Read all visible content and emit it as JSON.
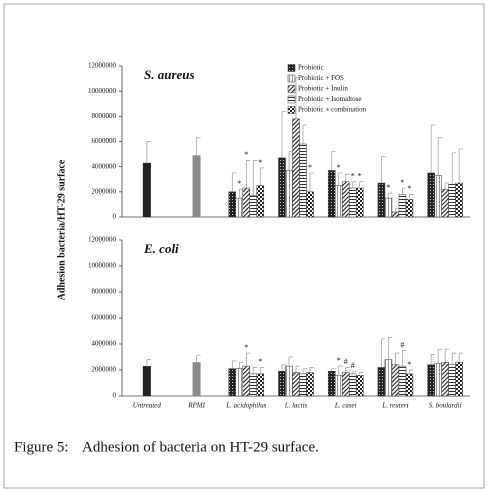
{
  "chart_data": [
    {
      "type": "bar",
      "title": "S. aureus",
      "ylabel": "Adhesion bacteria/HT-29 surface",
      "ylim": [
        0,
        12000000
      ],
      "yticks": [
        0,
        2000000,
        4000000,
        6000000,
        8000000,
        10000000,
        12000000
      ],
      "legend": "top-right",
      "control": {
        "values": [
          4300000,
          4900000,
          null,
          null,
          null,
          null,
          null
        ],
        "errors": [
          1700000,
          1400000,
          null,
          null,
          null,
          null,
          null
        ],
        "colors": [
          "#222",
          "#8a8a8a"
        ]
      },
      "series": [
        {
          "name": "Probiotic",
          "pattern": "dots",
          "values": [
            null,
            null,
            2000000,
            4700000,
            3700000,
            2700000,
            3500000
          ],
          "errors": [
            null,
            null,
            1500000,
            3700000,
            1500000,
            2100000,
            3800000
          ],
          "annotations": [
            null,
            null,
            null,
            null,
            null,
            null,
            null
          ]
        },
        {
          "name": "Probiotic + FOS",
          "pattern": "vlines",
          "values": [
            null,
            null,
            1500000,
            3700000,
            2500000,
            1500000,
            3300000
          ],
          "errors": [
            null,
            null,
            700000,
            1500000,
            1000000,
            400000,
            3000000
          ],
          "annotations": [
            null,
            null,
            "*",
            null,
            "*",
            "*",
            null
          ]
        },
        {
          "name": "Probiotic + Inulin",
          "pattern": "diag",
          "values": [
            null,
            null,
            2300000,
            7800000,
            2800000,
            400000,
            2200000
          ],
          "errors": [
            null,
            null,
            2200000,
            3300000,
            600000,
            300000,
            500000
          ],
          "annotations": [
            null,
            null,
            "*",
            null,
            null,
            null,
            null
          ]
        },
        {
          "name": "Probiotic + Isomaltose",
          "pattern": "hlines",
          "values": [
            null,
            null,
            1700000,
            5800000,
            2300000,
            1800000,
            2600000
          ],
          "errors": [
            null,
            null,
            2800000,
            1500000,
            500000,
            500000,
            2500000
          ],
          "annotations": [
            null,
            null,
            null,
            null,
            "*",
            "*",
            null
          ]
        },
        {
          "name": "Probiotic + combination",
          "pattern": "checker",
          "values": [
            null,
            null,
            2500000,
            2000000,
            2300000,
            1400000,
            2700000
          ],
          "errors": [
            null,
            null,
            1400000,
            1500000,
            500000,
            400000,
            2700000
          ],
          "annotations": [
            null,
            null,
            "*",
            "*",
            "*",
            "*",
            null
          ]
        }
      ]
    },
    {
      "type": "bar",
      "title": "E. coli",
      "ylim": [
        0,
        12000000
      ],
      "yticks": [
        0,
        2000000,
        4000000,
        6000000,
        8000000,
        10000000,
        12000000
      ],
      "categories": [
        "Untreated",
        "RPMI",
        "L. acidophilus",
        "L. lactis",
        "L. casei",
        "L. reuteri",
        "S. boulardii"
      ],
      "control": {
        "values": [
          2300000,
          2600000,
          null,
          null,
          null,
          null,
          null
        ],
        "errors": [
          500000,
          500000,
          null,
          null,
          null,
          null,
          null
        ],
        "colors": [
          "#222",
          "#8a8a8a"
        ]
      },
      "series": [
        {
          "pattern": "dots",
          "values": [
            null,
            null,
            2100000,
            1900000,
            1900000,
            2200000,
            2400000
          ],
          "errors": [
            null,
            null,
            600000,
            500000,
            200000,
            2200000,
            800000
          ],
          "annotations": [
            null,
            null,
            null,
            null,
            null,
            null,
            null
          ]
        },
        {
          "pattern": "vlines",
          "values": [
            null,
            null,
            2100000,
            2300000,
            1600000,
            2800000,
            2500000
          ],
          "errors": [
            null,
            null,
            500000,
            700000,
            700000,
            1700000,
            1100000
          ],
          "annotations": [
            null,
            null,
            null,
            null,
            "*",
            null,
            null
          ]
        },
        {
          "pattern": "diag",
          "values": [
            null,
            null,
            2300000,
            1800000,
            1800000,
            2400000,
            2600000
          ],
          "errors": [
            null,
            null,
            1000000,
            500000,
            400000,
            900000,
            1000000
          ],
          "annotations": [
            null,
            null,
            "*",
            null,
            "#",
            null,
            null
          ]
        },
        {
          "pattern": "hlines",
          "values": [
            null,
            null,
            1700000,
            1700000,
            1700000,
            2300000,
            2400000
          ],
          "errors": [
            null,
            null,
            500000,
            400000,
            200000,
            1200000,
            900000
          ],
          "annotations": [
            null,
            null,
            null,
            null,
            "#",
            "#",
            null
          ]
        },
        {
          "pattern": "checker",
          "values": [
            null,
            null,
            1700000,
            1800000,
            1600000,
            1700000,
            2600000
          ],
          "errors": [
            null,
            null,
            500000,
            400000,
            200000,
            300000,
            700000
          ],
          "annotations": [
            null,
            null,
            "*",
            null,
            null,
            "*",
            null
          ]
        }
      ]
    }
  ],
  "caption": {
    "label": "Figure 5:",
    "text": "Adhesion of bacteria on HT-29 surface."
  }
}
